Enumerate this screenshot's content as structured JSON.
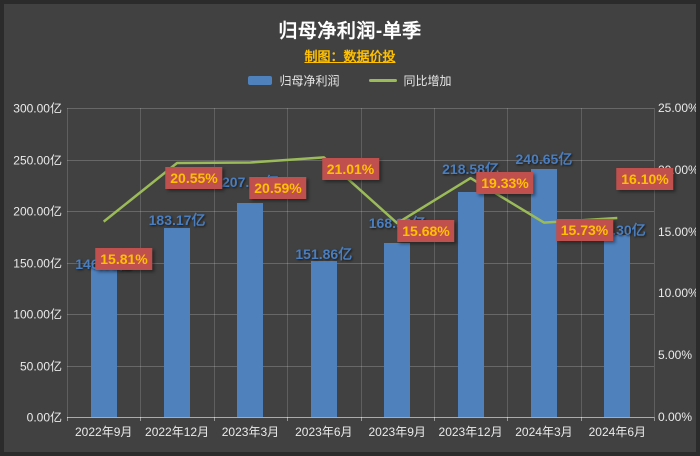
{
  "title": "归母净利润-单季",
  "subtitle": "制图：数据价投",
  "legend": {
    "bar_label": "归母净利润",
    "line_label": "同比增加"
  },
  "colors": {
    "background": "#414141",
    "frame_border": "#2b2b2b",
    "bar": "#4f81bd",
    "line": "#9bbb59",
    "bar_value_text": "#4a7ebf",
    "pct_box_bg": "#c0504d",
    "pct_text": "#ffc000",
    "title_text": "#ffffff",
    "subtitle_text": "#ffc000",
    "axis_text": "#eaeaea"
  },
  "chart_data": {
    "type": "bar",
    "subtype": "bar+line combo, dual axis",
    "title": "归母净利润-单季",
    "categories": [
      "2022年9月",
      "2022年12月",
      "2023年3月",
      "2023年6月",
      "2023年9月",
      "2023年12月",
      "2024年3月",
      "2024年6月"
    ],
    "series": [
      {
        "name": "归母净利润",
        "type": "bar",
        "axis": "left",
        "unit": "亿",
        "values": [
          146.06,
          183.17,
          207.95,
          151.86,
          168.96,
          218.58,
          240.65,
          176.3
        ],
        "labels": [
          "146.06亿",
          "183.17亿",
          "207.95亿",
          "151.86亿",
          "168.96亿",
          "218.58亿",
          "240.65亿",
          "176.30亿"
        ]
      },
      {
        "name": "同比增加",
        "type": "line",
        "axis": "right",
        "unit": "%",
        "values": [
          15.81,
          20.55,
          20.59,
          21.01,
          15.68,
          19.33,
          15.73,
          16.1
        ],
        "labels": [
          "15.81%",
          "20.55%",
          "20.59%",
          "21.01%",
          "15.68%",
          "19.33%",
          "15.73%",
          "16.10%"
        ]
      }
    ],
    "left_axis": {
      "ticks": [
        "300.00亿",
        "250.00亿",
        "200.00亿",
        "150.00亿",
        "100.00亿",
        "50.00亿",
        "0.00亿"
      ],
      "min": 0,
      "max": 300
    },
    "right_axis": {
      "ticks": [
        "25.00%",
        "20.00%",
        "15.00%",
        "10.00%",
        "5.00%",
        "0.00%"
      ],
      "min": 0,
      "max": 25
    },
    "grid": true,
    "legend_position": "top"
  }
}
